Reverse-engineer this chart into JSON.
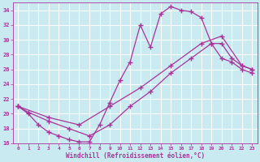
{
  "xlabel": "Windchill (Refroidissement éolien,°C)",
  "ylabel": "",
  "xlim": [
    -0.5,
    23.5
  ],
  "ylim": [
    16,
    35
  ],
  "yticks": [
    16,
    18,
    20,
    22,
    24,
    26,
    28,
    30,
    32,
    34
  ],
  "xticks": [
    0,
    1,
    2,
    3,
    4,
    5,
    6,
    7,
    8,
    9,
    10,
    11,
    12,
    13,
    14,
    15,
    16,
    17,
    18,
    19,
    20,
    21,
    22,
    23
  ],
  "background_color": "#c8eaf0",
  "grid_color": "#b8d8e0",
  "line_color": "#aa3399",
  "lines": [
    {
      "x": [
        0,
        1,
        2,
        3,
        4,
        5,
        6,
        7,
        8,
        9,
        10,
        11,
        12,
        13,
        14,
        15,
        16,
        17,
        18,
        19,
        20,
        21,
        22,
        23
      ],
      "y": [
        21,
        20,
        18.5,
        17.5,
        17,
        16.5,
        16.2,
        16.2,
        18.5,
        21.5,
        24.5,
        27,
        32,
        29,
        33.5,
        34.5,
        34,
        33.8,
        33,
        29.5,
        27.5,
        27,
        26,
        25.5
      ]
    },
    {
      "x": [
        0,
        3,
        6,
        9,
        12,
        15,
        18,
        20,
        22,
        23
      ],
      "y": [
        21,
        19.5,
        18.5,
        21,
        23.5,
        26.5,
        29.5,
        30.5,
        26.5,
        26
      ]
    },
    {
      "x": [
        0,
        1,
        3,
        5,
        7,
        9,
        11,
        13,
        15,
        17,
        19,
        20,
        21,
        22,
        23
      ],
      "y": [
        21,
        20.2,
        19,
        18,
        17,
        18.5,
        21,
        23,
        25.5,
        27.5,
        29.5,
        29.5,
        27.5,
        26.5,
        26
      ]
    }
  ],
  "marker": "+",
  "markersize": 4,
  "linewidth": 0.9
}
